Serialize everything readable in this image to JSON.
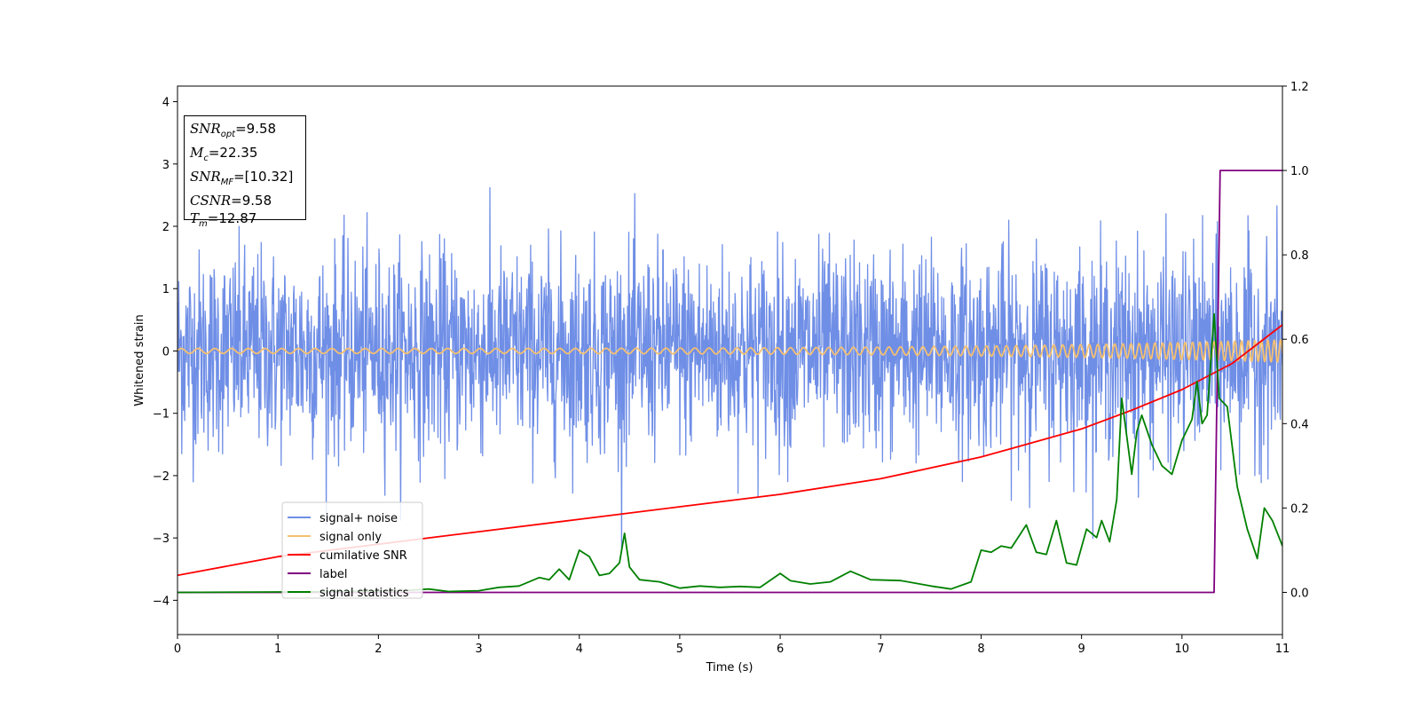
{
  "chart_data": {
    "type": "line",
    "xlabel": "Time (s)",
    "ylabel": "Whitened strain",
    "xlim": [
      0,
      11
    ],
    "ylim": [
      -4.55,
      4.25
    ],
    "y2lim": [
      -0.1,
      1.2
    ],
    "x_ticks": [
      0,
      1,
      2,
      3,
      4,
      5,
      6,
      7,
      8,
      9,
      10,
      11
    ],
    "y_ticks": [
      -4,
      -3,
      -2,
      -1,
      0,
      1,
      2,
      3,
      4
    ],
    "y_tick_labels": [
      "−4",
      "−3",
      "−2",
      "−1",
      "0",
      "1",
      "2",
      "3",
      "4"
    ],
    "y2_ticks": [
      0.0,
      0.2,
      0.4,
      0.6,
      0.8,
      1.0,
      1.2
    ],
    "y2_tick_labels": [
      "0.0",
      "0.2",
      "0.4",
      "0.6",
      "0.8",
      "1.0",
      "1.2"
    ],
    "legend_position": "lower-left",
    "annotation": {
      "snr_opt": {
        "sym": "SNR",
        "sub": "opt",
        "value": "=9.58"
      },
      "mc": {
        "sym": "M",
        "sub": "c",
        "value": "=22.35"
      },
      "snr_mf": {
        "sym": "SNR",
        "sub": "MF",
        "value": "=[10.32]"
      },
      "csnr": {
        "sym": "CSNR",
        "value": "=9.58"
      },
      "tm": {
        "sym": "T",
        "sub": "m",
        "value": "=12.87"
      }
    },
    "series": [
      {
        "name": "signal+ noise",
        "color": "#6f8ee6",
        "axis": "left",
        "description_kind": "noise",
        "std": 0.8,
        "min": -3.6,
        "max": 3.85
      },
      {
        "name": "signal only",
        "color": "#f5c070",
        "axis": "left",
        "description_kind": "chirp",
        "amp_start": 0.04,
        "amp_end": 0.18,
        "freq_start": 6,
        "freq_end": 16
      },
      {
        "name": "cumilative SNR",
        "color": "#ff0000",
        "axis": "left",
        "x": [
          0,
          1,
          2,
          3,
          4,
          5,
          6,
          7,
          8,
          9,
          9.5,
          10,
          10.5,
          11
        ],
        "y": [
          -3.6,
          -3.3,
          -3.1,
          -2.9,
          -2.7,
          -2.5,
          -2.3,
          -2.05,
          -1.7,
          -1.25,
          -0.95,
          -0.62,
          -0.2,
          0.42
        ]
      },
      {
        "name": "label",
        "color": "#800080",
        "axis": "right",
        "x": [
          0,
          10.32,
          10.38,
          11
        ],
        "y": [
          0,
          0,
          1,
          1
        ]
      },
      {
        "name": "signal statistics",
        "color": "#008000",
        "axis": "right",
        "x": [
          0,
          1,
          2,
          2.3,
          2.5,
          2.7,
          3,
          3.2,
          3.4,
          3.6,
          3.7,
          3.8,
          3.9,
          4.0,
          4.1,
          4.2,
          4.3,
          4.4,
          4.45,
          4.5,
          4.6,
          4.8,
          5.0,
          5.2,
          5.4,
          5.6,
          5.8,
          6.0,
          6.1,
          6.3,
          6.5,
          6.7,
          6.9,
          7.2,
          7.5,
          7.7,
          7.9,
          8.0,
          8.1,
          8.2,
          8.3,
          8.45,
          8.55,
          8.65,
          8.75,
          8.85,
          8.95,
          9.05,
          9.15,
          9.2,
          9.28,
          9.35,
          9.4,
          9.45,
          9.5,
          9.55,
          9.6,
          9.7,
          9.8,
          9.9,
          10.0,
          10.1,
          10.15,
          10.2,
          10.25,
          10.32,
          10.37,
          10.45,
          10.55,
          10.65,
          10.75,
          10.82,
          10.9,
          11.0
        ],
        "y": [
          0,
          0.001,
          0.003,
          0.005,
          0.008,
          0.002,
          0.004,
          0.012,
          0.015,
          0.035,
          0.03,
          0.055,
          0.03,
          0.1,
          0.085,
          0.04,
          0.045,
          0.07,
          0.14,
          0.06,
          0.03,
          0.025,
          0.01,
          0.015,
          0.012,
          0.014,
          0.012,
          0.045,
          0.028,
          0.02,
          0.025,
          0.05,
          0.03,
          0.028,
          0.015,
          0.008,
          0.025,
          0.1,
          0.095,
          0.11,
          0.105,
          0.16,
          0.095,
          0.09,
          0.17,
          0.07,
          0.065,
          0.15,
          0.13,
          0.17,
          0.12,
          0.22,
          0.46,
          0.37,
          0.28,
          0.38,
          0.42,
          0.35,
          0.3,
          0.28,
          0.36,
          0.41,
          0.5,
          0.4,
          0.42,
          0.66,
          0.46,
          0.44,
          0.25,
          0.15,
          0.08,
          0.2,
          0.17,
          0.11
        ]
      }
    ]
  }
}
